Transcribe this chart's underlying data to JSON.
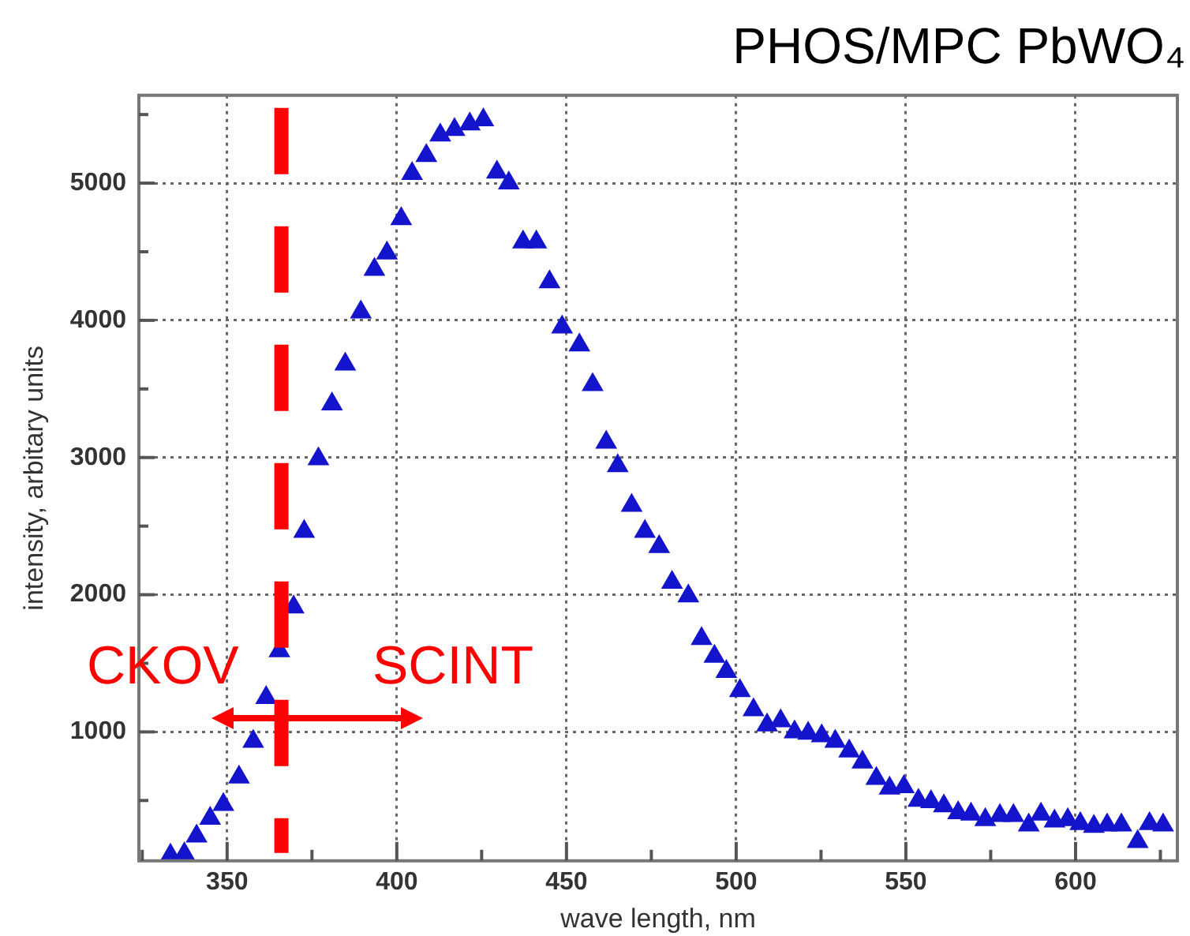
{
  "chart_data": {
    "type": "scatter",
    "title": "PHOS/MPC PbWO₄",
    "xlabel": "wave length, nm",
    "ylabel": "intensity, arbitary units",
    "annotations": [
      "CKOV",
      "SCINT"
    ],
    "series": [
      {
        "color": "#1414cc",
        "x": [
          333.3,
          337.4,
          341,
          345,
          348.9,
          353.5,
          357.7,
          361.5,
          365.4,
          369.6,
          372.7,
          376.9,
          380.9,
          384.8,
          389.4,
          393.4,
          397.1,
          401.3,
          404.5,
          408.7,
          412.8,
          417,
          421.5,
          425.5,
          429.5,
          433,
          437.2,
          441.1,
          445,
          448.7,
          453.8,
          457.7,
          461.7,
          465.1,
          469.2,
          473.1,
          477.3,
          481.1,
          485.9,
          489.8,
          493.6,
          497.1,
          501.1,
          505.1,
          509.1,
          513.1,
          517.2,
          521.2,
          525.2,
          529.2,
          533.3,
          537.2,
          541.3,
          545.2,
          549.4,
          553.7,
          557.4,
          561.2,
          565.4,
          569.2,
          573.4,
          577.7,
          581.7,
          586.2,
          589.8,
          593.8,
          597.7,
          601.4,
          605.4,
          609.3,
          613.5,
          618.3,
          621.8,
          625.8
        ],
        "values": [
          100,
          110,
          240,
          370,
          470,
          670,
          930,
          1250,
          1590,
          1910,
          2460,
          2990,
          3390,
          3680,
          4060,
          4370,
          4490,
          4740,
          5070,
          5200,
          5350,
          5390,
          5430,
          5460,
          5080,
          5000,
          4570,
          4570,
          4280,
          3950,
          3820,
          3530,
          3110,
          2940,
          2650,
          2460,
          2350,
          2090,
          1990,
          1680,
          1550,
          1440,
          1300,
          1160,
          1050,
          1080,
          1000,
          990,
          970,
          930,
          860,
          780,
          660,
          590,
          600,
          500,
          490,
          460,
          410,
          400,
          360,
          390,
          390,
          320,
          400,
          350,
          360,
          330,
          310,
          320,
          320,
          200,
          330,
          320
        ]
      }
    ],
    "marker": "triangle",
    "grid": true,
    "xlim": [
      324,
      630
    ],
    "ylim": [
      60,
      5640
    ],
    "xticks": [
      {
        "value": 325,
        "label": null
      },
      350,
      {
        "value": 375,
        "label": null
      },
      400,
      {
        "value": 425,
        "label": null
      },
      450,
      {
        "value": 475,
        "label": null
      },
      500,
      {
        "value": 525,
        "label": null
      },
      550,
      {
        "value": 575,
        "label": null
      },
      600,
      {
        "value": 625,
        "label": null
      }
    ],
    "yticks": [
      {
        "value": 500,
        "label": null
      },
      1000,
      {
        "value": 1500,
        "label": null
      },
      2000,
      {
        "value": 2500,
        "label": null
      },
      3000,
      {
        "value": 3500,
        "label": null
      },
      4000,
      {
        "value": 4500,
        "label": null
      },
      5000,
      {
        "value": 5500,
        "label": null
      }
    ],
    "ref_lines": [
      {
        "axis": "x",
        "value": 366,
        "color": "#ff0000",
        "line_style": "dashed"
      }
    ]
  }
}
